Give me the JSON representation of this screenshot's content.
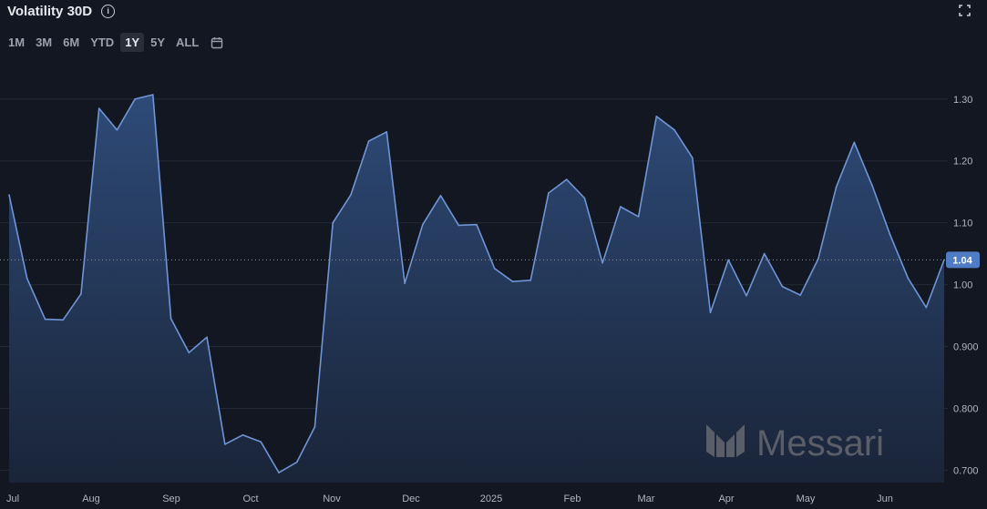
{
  "header": {
    "title": "Volatility 30D",
    "info_icon": "info-icon",
    "expand_icon": "expand-icon"
  },
  "ranges": {
    "items": [
      "1M",
      "3M",
      "6M",
      "YTD",
      "1Y",
      "5Y",
      "ALL"
    ],
    "active": "1Y",
    "calendar_icon": "calendar-icon"
  },
  "watermark": {
    "text": "Messari"
  },
  "chart_data": {
    "type": "area",
    "title": "Volatility 30D",
    "xlabel": "",
    "ylabel": "",
    "x_ticks": [
      "Jul",
      "Aug",
      "Sep",
      "Oct",
      "Nov",
      "Dec",
      "2025",
      "Feb",
      "Mar",
      "Apr",
      "May",
      "Jun"
    ],
    "y_ticks": [
      "0.700",
      "0.800",
      "0.900",
      "1.00",
      "1.10",
      "1.20",
      "1.30"
    ],
    "ylim": [
      0.68,
      1.335
    ],
    "grid": true,
    "last_value": "1.04",
    "series": [
      {
        "values": [
          1.145,
          1.01,
          0.944,
          0.943,
          0.985,
          1.285,
          1.25,
          1.3,
          1.307,
          0.945,
          0.89,
          0.915,
          0.742,
          0.757,
          0.746,
          0.696,
          0.713,
          0.77,
          1.1,
          1.145,
          1.232,
          1.247,
          1.002,
          1.097,
          1.144,
          1.096,
          1.097,
          1.026,
          1.005,
          1.007,
          1.148,
          1.17,
          1.14,
          1.035,
          1.126,
          1.11,
          1.272,
          1.25,
          1.205,
          0.955,
          1.04,
          0.982,
          1.05,
          0.997,
          0.983,
          1.042,
          1.158,
          1.23,
          1.16,
          1.08,
          1.01,
          0.963,
          1.04
        ]
      }
    ]
  }
}
